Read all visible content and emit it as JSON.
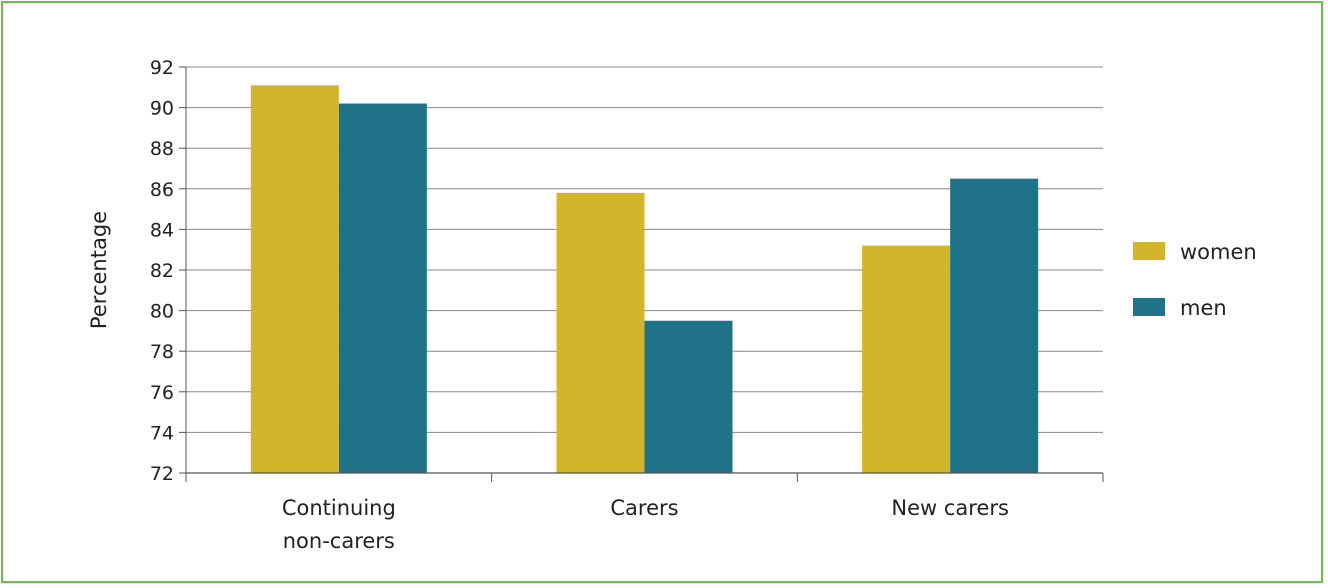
{
  "chart_data": {
    "type": "bar",
    "categories": [
      [
        "Continuing",
        "non-carers"
      ],
      [
        "Carers"
      ],
      [
        "New carers"
      ]
    ],
    "series": [
      {
        "name": "women",
        "color": "#d2b52b",
        "values": [
          91.1,
          85.8,
          83.2
        ]
      },
      {
        "name": "men",
        "color": "#1f7287",
        "values": [
          90.2,
          79.5,
          86.5
        ]
      }
    ],
    "ylabel": "Percentage",
    "ylim": [
      72,
      92
    ],
    "yticks": [
      72,
      74,
      76,
      78,
      80,
      82,
      84,
      86,
      88,
      90,
      92
    ],
    "grid": true,
    "legend_position": "right",
    "colors": {
      "frame": "#6cbf4a",
      "grid": "#888888",
      "axis": "#555555"
    }
  }
}
